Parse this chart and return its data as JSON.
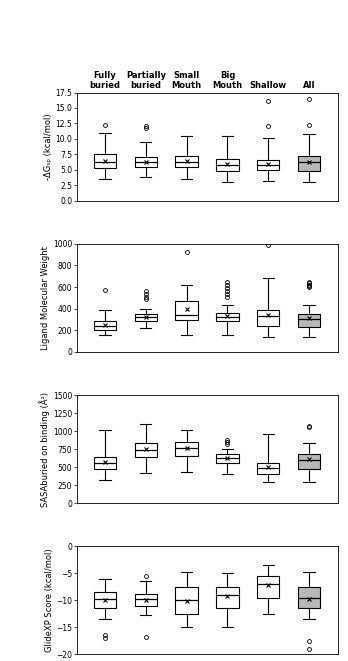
{
  "categories": [
    "Fully\nburied",
    "Partially\nburied",
    "Small\nMouth",
    "Big\nMouth",
    "Shallow",
    "All"
  ],
  "colors": [
    "white",
    "white",
    "white",
    "white",
    "white",
    "#b8b8b8"
  ],
  "panel1": {
    "ylabel": "-ΔGₛₚ (kcal/mol)",
    "ylim": [
      0,
      17.5
    ],
    "yticks": [
      0,
      2.5,
      5,
      7.5,
      10,
      12.5,
      15,
      17.5
    ],
    "boxes": [
      {
        "med": 6.3,
        "q1": 5.2,
        "q3": 7.5,
        "whislo": 3.5,
        "whishi": 11.0,
        "fliers": [
          12.2
        ],
        "mean": 6.4
      },
      {
        "med": 6.2,
        "q1": 5.5,
        "q3": 7.0,
        "whislo": 3.8,
        "whishi": 9.5,
        "fliers": [
          12.0,
          11.8
        ],
        "mean": 6.3
      },
      {
        "med": 6.3,
        "q1": 5.5,
        "q3": 7.2,
        "whislo": 3.5,
        "whishi": 10.5,
        "fliers": [],
        "mean": 6.4
      },
      {
        "med": 5.8,
        "q1": 4.8,
        "q3": 6.8,
        "whislo": 3.0,
        "whishi": 10.5,
        "fliers": [],
        "mean": 5.9
      },
      {
        "med": 5.8,
        "q1": 5.0,
        "q3": 6.5,
        "whislo": 3.2,
        "whishi": 10.2,
        "fliers": [
          16.2,
          12.0
        ],
        "mean": 5.9
      },
      {
        "med": 6.2,
        "q1": 4.8,
        "q3": 7.3,
        "whislo": 3.0,
        "whishi": 10.8,
        "fliers": [
          16.5,
          12.2
        ],
        "mean": 6.3
      }
    ]
  },
  "panel2": {
    "ylabel": "Ligand Molecular Weight",
    "ylim": [
      0,
      1000
    ],
    "yticks": [
      0,
      200,
      400,
      600,
      800,
      1000
    ],
    "boxes": [
      {
        "med": 240,
        "q1": 200,
        "q3": 290,
        "whislo": 160,
        "whishi": 385,
        "fliers": [
          575
        ],
        "mean": 245
      },
      {
        "med": 320,
        "q1": 290,
        "q3": 350,
        "whislo": 225,
        "whishi": 400,
        "fliers": [
          560,
          540,
          510,
          490
        ],
        "mean": 325
      },
      {
        "med": 345,
        "q1": 295,
        "q3": 475,
        "whislo": 155,
        "whishi": 620,
        "fliers": [
          925
        ],
        "mean": 400
      },
      {
        "med": 325,
        "q1": 290,
        "q3": 355,
        "whislo": 155,
        "whishi": 430,
        "fliers": [
          650,
          620,
          590,
          560,
          540,
          510
        ],
        "mean": 335
      },
      {
        "med": 330,
        "q1": 240,
        "q3": 390,
        "whislo": 140,
        "whishi": 680,
        "fliers": [
          985
        ],
        "mean": 340
      },
      {
        "med": 300,
        "q1": 230,
        "q3": 350,
        "whislo": 140,
        "whishi": 430,
        "fliers": [
          650,
          635,
          620,
          610,
          600
        ],
        "mean": 310
      }
    ]
  },
  "panel3": {
    "ylabel": "SASAburied on binding (Å²)",
    "ylim": [
      0,
      1500
    ],
    "yticks": [
      0,
      250,
      500,
      750,
      1000,
      1250,
      1500
    ],
    "boxes": [
      {
        "med": 560,
        "q1": 470,
        "q3": 640,
        "whislo": 320,
        "whishi": 1010,
        "fliers": [],
        "mean": 570
      },
      {
        "med": 740,
        "q1": 640,
        "q3": 840,
        "whislo": 420,
        "whishi": 1100,
        "fliers": [],
        "mean": 750
      },
      {
        "med": 760,
        "q1": 650,
        "q3": 850,
        "whislo": 430,
        "whishi": 1020,
        "fliers": [],
        "mean": 770
      },
      {
        "med": 620,
        "q1": 560,
        "q3": 680,
        "whislo": 400,
        "whishi": 750,
        "fliers": [
          870,
          850,
          820
        ],
        "mean": 625
      },
      {
        "med": 490,
        "q1": 410,
        "q3": 560,
        "whislo": 290,
        "whishi": 960,
        "fliers": [],
        "mean": 500
      },
      {
        "med": 600,
        "q1": 480,
        "q3": 680,
        "whislo": 300,
        "whishi": 840,
        "fliers": [
          1070,
          1050
        ],
        "mean": 610
      }
    ]
  },
  "panel4": {
    "ylabel": "GlideXP Score (kcal/mol)",
    "ylim": [
      -20,
      0
    ],
    "yticks": [
      0,
      -5,
      -10,
      -15,
      -20
    ],
    "boxes": [
      {
        "med": -9.8,
        "q1": -11.5,
        "q3": -8.5,
        "whislo": -13.5,
        "whishi": -6.0,
        "fliers": [
          -16.5,
          -17.0
        ],
        "mean": -10.0
      },
      {
        "med": -9.8,
        "q1": -11.0,
        "q3": -8.8,
        "whislo": -12.8,
        "whishi": -6.5,
        "fliers": [
          -5.5,
          -16.8
        ],
        "mean": -10.0
      },
      {
        "med": -10.0,
        "q1": -12.5,
        "q3": -7.5,
        "whislo": -15.0,
        "whishi": -4.8,
        "fliers": [],
        "mean": -10.2
      },
      {
        "med": -9.0,
        "q1": -11.5,
        "q3": -7.5,
        "whislo": -15.0,
        "whishi": -5.0,
        "fliers": [],
        "mean": -9.2
      },
      {
        "med": -7.0,
        "q1": -9.5,
        "q3": -5.5,
        "whislo": -12.5,
        "whishi": -3.5,
        "fliers": [],
        "mean": -7.2
      },
      {
        "med": -9.5,
        "q1": -11.5,
        "q3": -7.5,
        "whislo": -13.5,
        "whishi": -4.8,
        "fliers": [
          -17.5,
          -19.0
        ],
        "mean": -9.7
      }
    ]
  },
  "fig_width": 3.48,
  "fig_height": 6.61,
  "dpi": 100
}
